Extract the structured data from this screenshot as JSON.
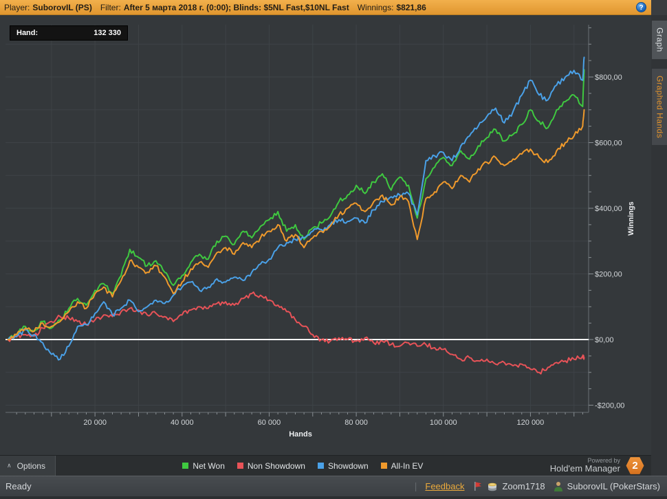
{
  "titlebar": {
    "player_label": "Player:",
    "player": "SuborovIL (PS)",
    "filter_label": "Filter:",
    "filter": "After 5 марта 2018 г. (0:00); Blinds: $5NL Fast,$10NL Fast",
    "winnings_label": "Winnings:",
    "winnings": "$821,86",
    "help_icon": "?"
  },
  "tabs": [
    {
      "label": "Graph",
      "active": true
    },
    {
      "label": "Graphed Hands",
      "active": false
    }
  ],
  "hand_counter": {
    "label": "Hand:",
    "value": "132 330"
  },
  "chart_data": {
    "type": "line",
    "title": "",
    "xlabel": "Hands",
    "ylabel": "Winnings",
    "xlim": [
      0,
      133500
    ],
    "ylim": [
      -222,
      957
    ],
    "grid": true,
    "legend_position": "bottom",
    "zero_line": 0,
    "x_grid_step": 10000,
    "y_grid_step": 100,
    "x_minor_tick_step": 2000,
    "y_minor_tick_step": 50,
    "x_major_ticks": [
      20000,
      40000,
      60000,
      80000,
      100000,
      120000
    ],
    "x_tick_labels": [
      "20 000",
      "40 000",
      "60 000",
      "80 000",
      "100 000",
      "120 000"
    ],
    "y_major_ticks": [
      -200,
      0,
      200,
      400,
      600,
      800
    ],
    "y_tick_labels": [
      "-$200,00",
      "$0,00",
      "$200,00",
      "$400,00",
      "$600,00",
      "$800,00"
    ],
    "x": [
      0,
      2000,
      4000,
      6000,
      8000,
      10000,
      12000,
      14000,
      16000,
      18000,
      20000,
      22000,
      24000,
      26000,
      28000,
      30000,
      32000,
      34000,
      36000,
      38000,
      40000,
      42000,
      44000,
      46000,
      48000,
      50000,
      52000,
      54000,
      56000,
      58000,
      60000,
      62000,
      64000,
      66000,
      68000,
      70000,
      72000,
      74000,
      76000,
      78000,
      80000,
      82000,
      84000,
      86000,
      88000,
      90000,
      92000,
      94000,
      96000,
      98000,
      100000,
      102000,
      104000,
      106000,
      108000,
      110000,
      112000,
      114000,
      116000,
      118000,
      120000,
      122000,
      124000,
      126000,
      128000,
      130000,
      132000,
      132330
    ],
    "series": [
      {
        "name": "Net Won",
        "color": "#3fc940",
        "values": [
          0,
          15,
          40,
          25,
          55,
          35,
          60,
          95,
          125,
          105,
          150,
          170,
          140,
          195,
          275,
          250,
          225,
          240,
          205,
          165,
          195,
          235,
          260,
          245,
          300,
          315,
          290,
          330,
          310,
          345,
          365,
          390,
          330,
          350,
          305,
          340,
          355,
          375,
          420,
          440,
          470,
          445,
          480,
          505,
          455,
          495,
          470,
          370,
          490,
          525,
          555,
          530,
          575,
          550,
          590,
          615,
          640,
          605,
          625,
          655,
          700,
          665,
          645,
          700,
          725,
          745,
          710,
          822
        ]
      },
      {
        "name": "Non Showdown",
        "color": "#e85358",
        "values": [
          0,
          8,
          15,
          10,
          35,
          55,
          70,
          65,
          55,
          45,
          60,
          75,
          70,
          85,
          95,
          90,
          75,
          80,
          70,
          55,
          75,
          90,
          100,
          95,
          110,
          115,
          105,
          125,
          140,
          135,
          120,
          105,
          85,
          60,
          40,
          15,
          0,
          -5,
          5,
          0,
          -5,
          5,
          -10,
          -5,
          -15,
          -20,
          -10,
          -20,
          -15,
          -25,
          -30,
          -45,
          -60,
          -55,
          -65,
          -60,
          -75,
          -70,
          -80,
          -75,
          -90,
          -100,
          -85,
          -70,
          -65,
          -60,
          -50,
          -55
        ]
      },
      {
        "name": "Showdown",
        "color": "#4aa1e8",
        "values": [
          0,
          10,
          30,
          15,
          -10,
          -45,
          -60,
          -20,
          40,
          45,
          80,
          115,
          75,
          95,
          120,
          85,
          100,
          120,
          110,
          135,
          160,
          175,
          150,
          160,
          185,
          175,
          190,
          180,
          205,
          230,
          245,
          280,
          295,
          305,
          310,
          330,
          335,
          350,
          365,
          360,
          370,
          355,
          395,
          420,
          435,
          440,
          445,
          380,
          545,
          560,
          570,
          545,
          590,
          620,
          650,
          680,
          705,
          660,
          695,
          745,
          790,
          745,
          730,
          775,
          800,
          820,
          790,
          860
        ]
      },
      {
        "name": "All-In EV",
        "color": "#f09a2c",
        "values": [
          0,
          15,
          35,
          25,
          50,
          40,
          55,
          85,
          115,
          95,
          140,
          160,
          130,
          180,
          240,
          220,
          205,
          225,
          190,
          140,
          175,
          215,
          235,
          220,
          265,
          280,
          260,
          295,
          280,
          310,
          330,
          350,
          300,
          320,
          280,
          310,
          330,
          345,
          380,
          400,
          415,
          390,
          420,
          440,
          410,
          435,
          420,
          305,
          430,
          450,
          480,
          460,
          500,
          480,
          520,
          540,
          555,
          530,
          550,
          565,
          580,
          555,
          540,
          575,
          600,
          620,
          650,
          700
        ]
      }
    ]
  },
  "options_bar": {
    "options_label": "Options",
    "caret": "∧",
    "legend": [
      {
        "label": "Net Won",
        "color": "#3fc940"
      },
      {
        "label": "Non Showdown",
        "color": "#e85358"
      },
      {
        "label": "Showdown",
        "color": "#4aa1e8"
      },
      {
        "label": "All-In EV",
        "color": "#f09a2c"
      }
    ],
    "powered_by": "Powered by",
    "brand": "Hold'em Manager",
    "brand_badge": "2"
  },
  "status_bar": {
    "status": "Ready",
    "feedback": "Feedback",
    "table": "Zoom1718",
    "account": "SuborovIL (PokerStars)"
  }
}
